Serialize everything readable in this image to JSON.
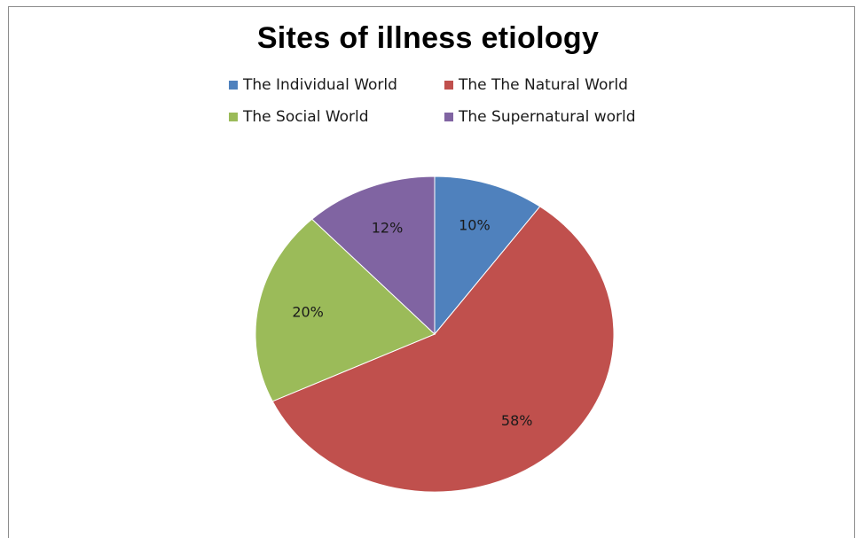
{
  "chart_data": {
    "type": "pie",
    "title": "Sites of illness etiology",
    "legend_position": "top",
    "start_angle_deg": 0,
    "direction": "clockwise",
    "slices": [
      {
        "label": "The Individual World",
        "value": 10,
        "value_label": "10%",
        "color": "#4f81bd"
      },
      {
        "label": "The The Natural World",
        "value": 58,
        "value_label": "58%",
        "color": "#c0504d"
      },
      {
        "label": "The Social World",
        "value": 20,
        "value_label": "20%",
        "color": "#9bbb59"
      },
      {
        "label": "The Supernatural world",
        "value": 12,
        "value_label": "12%",
        "color": "#8064a2"
      }
    ]
  }
}
